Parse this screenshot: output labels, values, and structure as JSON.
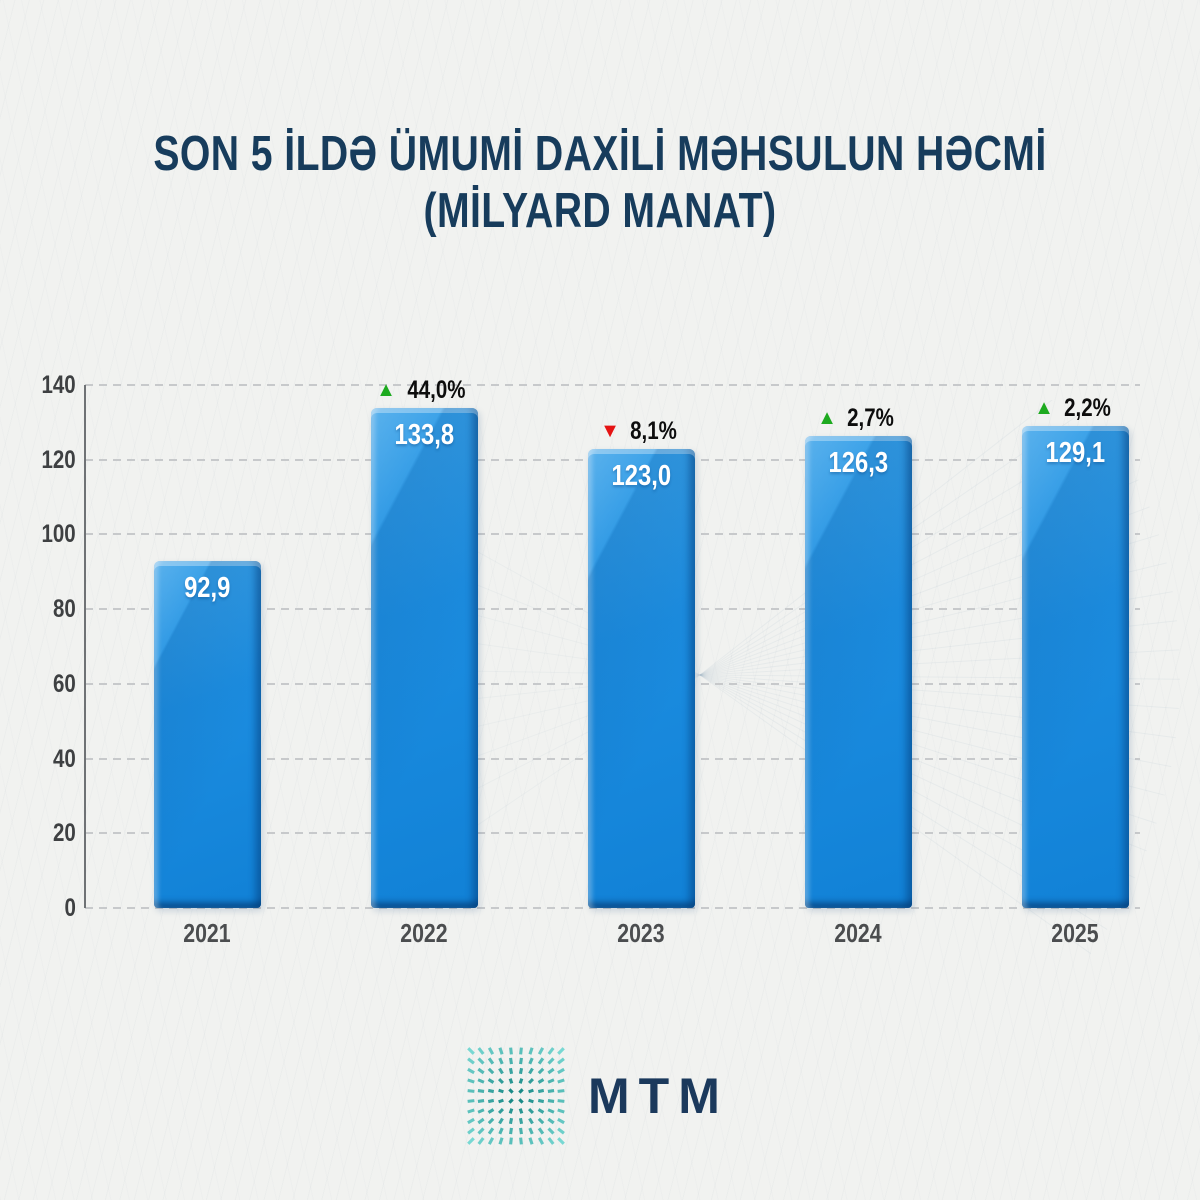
{
  "title": {
    "line1": "SON 5 İLDƏ ÜMUMİ DAXİLİ MƏHSULUN HƏCMİ",
    "line2": "(MİLYARD MANAT)"
  },
  "chart_data": {
    "type": "bar",
    "categories": [
      "2021",
      "2022",
      "2023",
      "2024",
      "2025"
    ],
    "values": [
      92.9,
      133.8,
      123.0,
      126.3,
      129.1
    ],
    "value_labels": [
      "92,9",
      "133,8",
      "123,0",
      "126,3",
      "129,1"
    ],
    "changes": [
      null,
      {
        "dir": "up",
        "label": "44,0%"
      },
      {
        "dir": "down",
        "label": "8,1%"
      },
      {
        "dir": "up",
        "label": "2,7%"
      },
      {
        "dir": "up",
        "label": "2,2%"
      }
    ],
    "title": "SON 5 İLDƏ ÜMUMİ DAXİLİ MƏHSULUN HƏCMİ (MİLYARD MANAT)",
    "xlabel": "",
    "ylabel": "",
    "ylim": [
      0,
      140
    ],
    "ytick_step": 20,
    "yticks": [
      "0",
      "20",
      "40",
      "60",
      "80",
      "100",
      "120",
      "140"
    ],
    "grid": "horizontal-dashed",
    "legend": "none",
    "bar_color": "#1a8ce0",
    "bar_highlight": "#5fc0f4",
    "bar_shadow": "#0b66ac",
    "up_color": "#1daa1f",
    "down_color": "#e51313",
    "value_text_color": "#ffffff",
    "axis_text_color": "#3e4042"
  },
  "icons": {
    "up_triangle": "▲",
    "down_triangle": "▼"
  },
  "logo": {
    "text": "MTM",
    "icon": "starburst-dash-grid-icon",
    "icon_color_inner": "#0d807e",
    "icon_color_outer": "#78d8d3",
    "text_color": "#1b395c"
  },
  "background_color": "#f1f2f0",
  "title_color": "#173c5c"
}
